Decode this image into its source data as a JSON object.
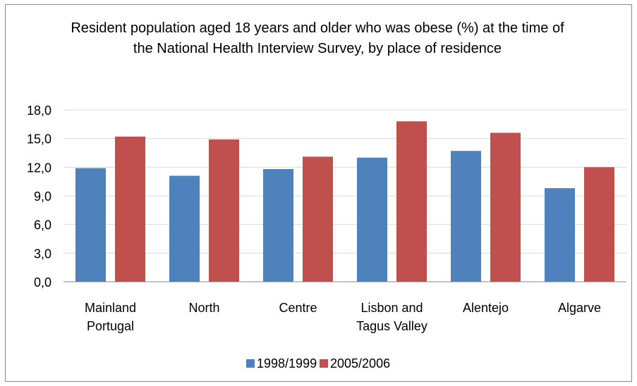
{
  "chart_data": {
    "type": "bar",
    "title": "Resident population aged 18 years and older who was obese (%) at the time of the National Health Interview Survey, by place of residence",
    "categories": [
      [
        "Mainland",
        "Portugal"
      ],
      [
        "North"
      ],
      [
        "Centre"
      ],
      [
        "Lisbon and",
        "Tagus Valley"
      ],
      [
        "Alentejo"
      ],
      [
        "Algarve"
      ]
    ],
    "series": [
      {
        "name": "1998/1999",
        "color": "#4f81bd",
        "values": [
          11.9,
          11.1,
          11.8,
          13.0,
          13.7,
          9.8
        ]
      },
      {
        "name": "2005/2006",
        "color": "#c0504d",
        "values": [
          15.2,
          14.9,
          13.1,
          16.8,
          15.6,
          12.0
        ]
      }
    ],
    "ylim": [
      0,
      18
    ],
    "yticks": [
      "0,0",
      "3,0",
      "6,0",
      "9,0",
      "12,0",
      "15,0",
      "18,0"
    ],
    "grid": true,
    "legend": "bottom"
  }
}
